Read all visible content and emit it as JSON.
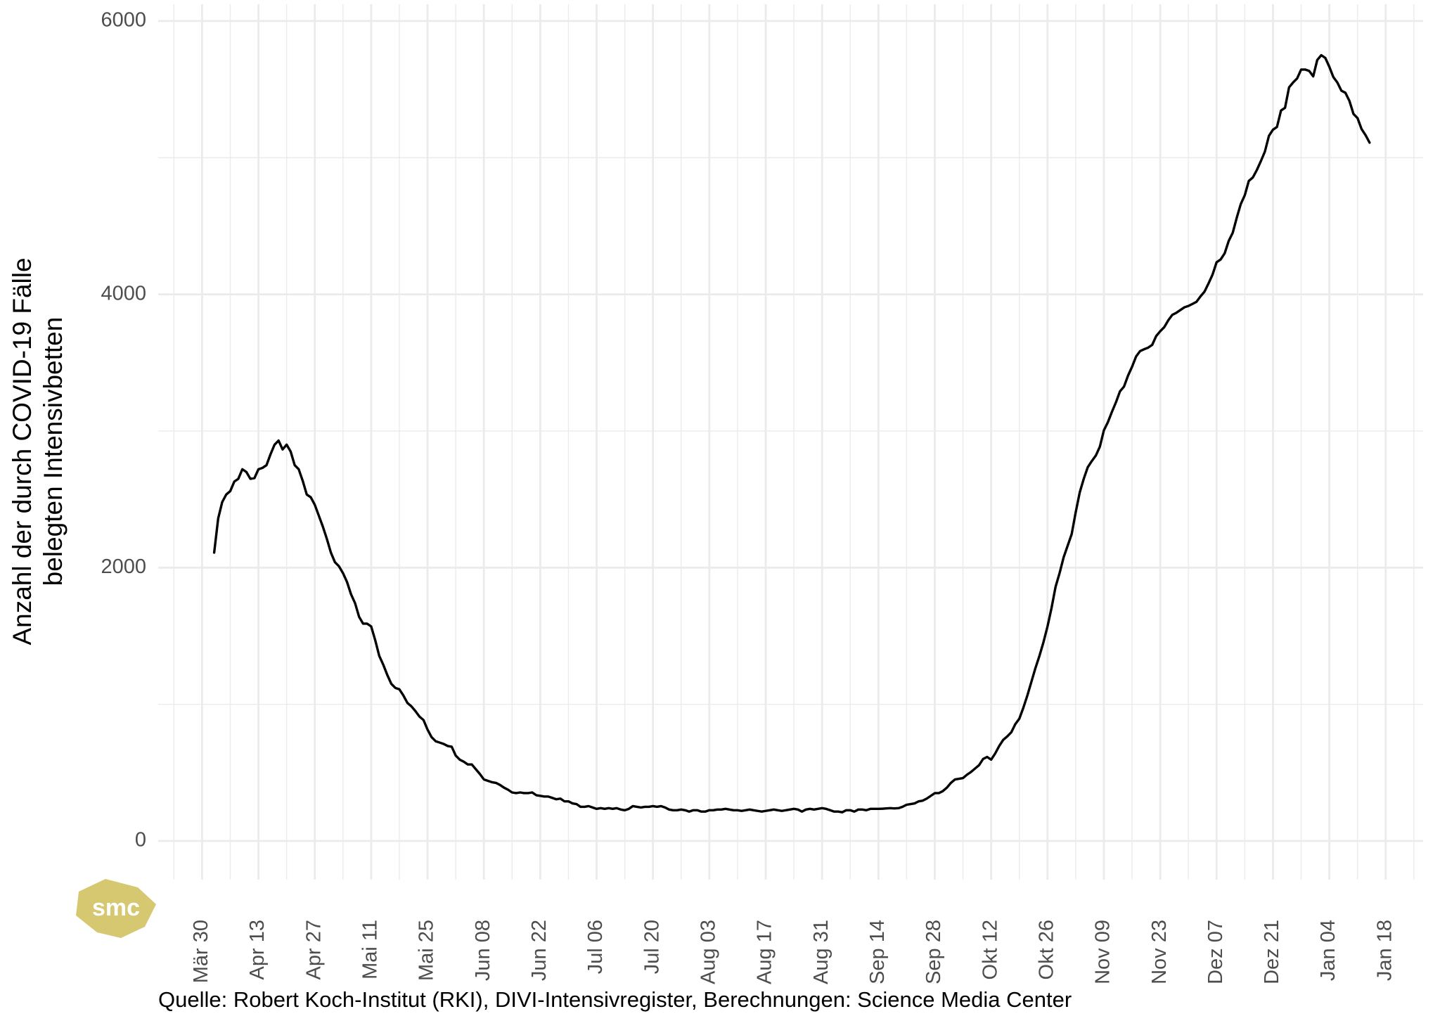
{
  "chart_data": {
    "type": "line",
    "ylabel": [
      "Anzahl der durch COVID-19 Fälle",
      "belegten Intensivbetten"
    ],
    "caption": "Quelle: Robert Koch-Institut (RKI), DIVI-Intensivregister, Berechnungen: Science Media Center",
    "logo": "smc",
    "color": "#000000",
    "grid": true,
    "ylim": [
      -283,
      6123
    ],
    "yticks": [
      0,
      2000,
      4000,
      6000
    ],
    "categories": [
      "Mär 30",
      null,
      null,
      null,
      null,
      null,
      null,
      null,
      null,
      null,
      null,
      null,
      null,
      null,
      "Apr 13",
      null,
      null,
      null,
      null,
      null,
      null,
      null,
      null,
      null,
      null,
      null,
      null,
      null,
      "Apr 27",
      null,
      null,
      null,
      null,
      null,
      null,
      null,
      null,
      null,
      null,
      null,
      null,
      null,
      "Mai 11",
      null,
      null,
      null,
      null,
      null,
      null,
      null,
      null,
      null,
      null,
      null,
      null,
      null,
      "Mai 25",
      null,
      null,
      null,
      null,
      null,
      null,
      null,
      null,
      null,
      null,
      null,
      null,
      null,
      "Jun 08",
      null,
      null,
      null,
      null,
      null,
      null,
      null,
      null,
      null,
      null,
      null,
      null,
      null,
      "Jun 22",
      null,
      null,
      null,
      null,
      null,
      null,
      null,
      null,
      null,
      null,
      null,
      null,
      null,
      "Jul 06",
      null,
      null,
      null,
      null,
      null,
      null,
      null,
      null,
      null,
      null,
      null,
      null,
      null,
      "Jul 20",
      null,
      null,
      null,
      null,
      null,
      null,
      null,
      null,
      null,
      null,
      null,
      null,
      null,
      "Aug 03",
      null,
      null,
      null,
      null,
      null,
      null,
      null,
      null,
      null,
      null,
      null,
      null,
      null,
      "Aug 17",
      null,
      null,
      null,
      null,
      null,
      null,
      null,
      null,
      null,
      null,
      null,
      null,
      null,
      "Aug 31",
      null,
      null,
      null,
      null,
      null,
      null,
      null,
      null,
      null,
      null,
      null,
      null,
      null,
      "Sep 14",
      null,
      null,
      null,
      null,
      null,
      null,
      null,
      null,
      null,
      null,
      null,
      null,
      null,
      "Sep 28",
      null,
      null,
      null,
      null,
      null,
      null,
      null,
      null,
      null,
      null,
      null,
      null,
      null,
      "Okt 12",
      null,
      null,
      null,
      null,
      null,
      null,
      null,
      null,
      null,
      null,
      null,
      null,
      null,
      "Okt 26",
      null,
      null,
      null,
      null,
      null,
      null,
      null,
      null,
      null,
      null,
      null,
      null,
      null,
      "Nov 09",
      null,
      null,
      null,
      null,
      null,
      null,
      null,
      null,
      null,
      null,
      null,
      null,
      null,
      "Nov 23",
      null,
      null,
      null,
      null,
      null,
      null,
      null,
      null,
      null,
      null,
      null,
      null,
      null,
      "Dez 07",
      null,
      null,
      null,
      null,
      null,
      null,
      null,
      null,
      null,
      null,
      null,
      null,
      null,
      "Dez 21",
      null,
      null,
      null,
      null,
      null,
      null,
      null,
      null,
      null,
      null,
      null,
      null,
      null,
      "Jan 04",
      null,
      null,
      null,
      null,
      null,
      null,
      null,
      null,
      null,
      null,
      null,
      null,
      null,
      "Jan 18"
    ],
    "values": [
      null,
      null,
      null,
      2110,
      2360,
      2480,
      2535,
      2560,
      2630,
      2650,
      2720,
      2700,
      2650,
      2655,
      2720,
      2730,
      2750,
      2830,
      2900,
      2930,
      2865,
      2900,
      2850,
      2750,
      2720,
      2635,
      2535,
      2515,
      2460,
      2380,
      2300,
      2210,
      2110,
      2040,
      2010,
      1960,
      1895,
      1805,
      1740,
      1640,
      1590,
      1590,
      1570,
      1470,
      1355,
      1290,
      1215,
      1150,
      1120,
      1110,
      1065,
      1010,
      985,
      950,
      910,
      885,
      815,
      760,
      730,
      720,
      710,
      695,
      690,
      625,
      595,
      580,
      560,
      560,
      525,
      490,
      450,
      440,
      430,
      425,
      410,
      390,
      375,
      355,
      350,
      355,
      350,
      350,
      355,
      335,
      330,
      325,
      325,
      315,
      305,
      310,
      290,
      290,
      275,
      270,
      250,
      250,
      255,
      245,
      235,
      240,
      235,
      240,
      235,
      240,
      230,
      225,
      235,
      255,
      250,
      245,
      250,
      250,
      255,
      250,
      255,
      245,
      230,
      225,
      225,
      230,
      225,
      215,
      225,
      225,
      215,
      215,
      225,
      225,
      230,
      230,
      235,
      230,
      225,
      225,
      220,
      225,
      230,
      225,
      220,
      215,
      220,
      225,
      230,
      225,
      220,
      225,
      230,
      235,
      230,
      215,
      230,
      235,
      230,
      235,
      240,
      235,
      225,
      215,
      215,
      210,
      225,
      225,
      215,
      230,
      230,
      225,
      235,
      235,
      235,
      236,
      238,
      240,
      238,
      240,
      250,
      265,
      270,
      275,
      290,
      295,
      310,
      330,
      350,
      350,
      365,
      390,
      425,
      450,
      455,
      460,
      485,
      505,
      530,
      555,
      600,
      615,
      595,
      640,
      695,
      740,
      765,
      795,
      855,
      895,
      975,
      1065,
      1165,
      1265,
      1355,
      1455,
      1570,
      1705,
      1860,
      1960,
      2075,
      2160,
      2245,
      2405,
      2550,
      2650,
      2735,
      2780,
      2820,
      2885,
      3005,
      3065,
      3140,
      3210,
      3290,
      3325,
      3405,
      3470,
      3545,
      3585,
      3598,
      3610,
      3630,
      3695,
      3730,
      3760,
      3810,
      3850,
      3865,
      3885,
      3905,
      3915,
      3930,
      3945,
      3985,
      4020,
      4080,
      4145,
      4235,
      4255,
      4300,
      4390,
      4450,
      4560,
      4660,
      4725,
      4830,
      4855,
      4910,
      4975,
      5045,
      5160,
      5205,
      5225,
      5345,
      5365,
      5515,
      5550,
      5580,
      5645,
      5645,
      5635,
      5595,
      5715,
      5750,
      5730,
      5665,
      5590,
      5550,
      5490,
      5475,
      5415,
      5320,
      5290,
      5210,
      5165,
      5110,
      null,
      null,
      null,
      null
    ]
  }
}
